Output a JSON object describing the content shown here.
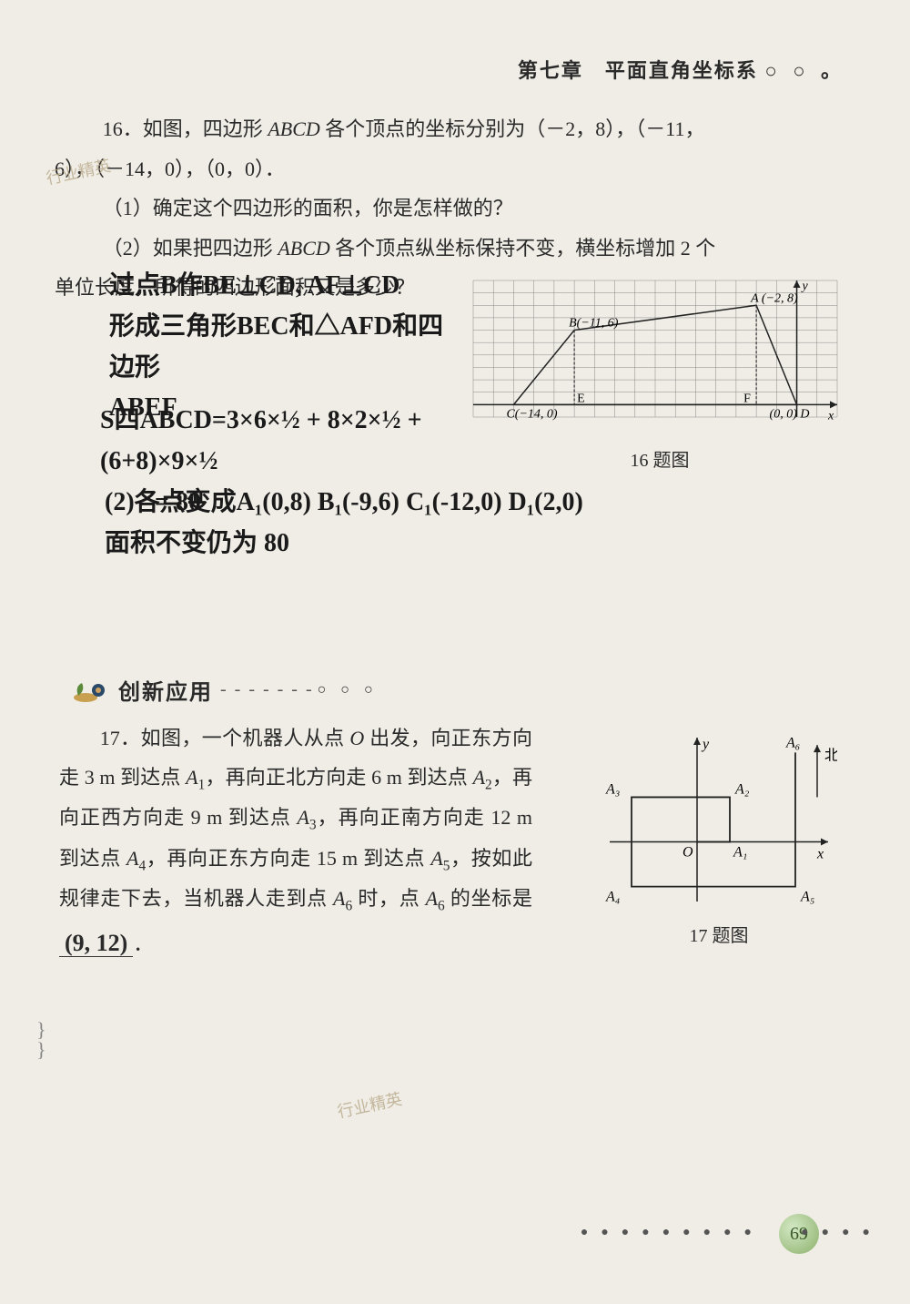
{
  "background_color": "#f0ede6",
  "text_color": "#2a2a2a",
  "handwriting_color": "#1a1a1a",
  "header": {
    "chapter": "第七章　平面直角坐标系",
    "circles": "○ ○ 。"
  },
  "watermark": "行业精英",
  "problem16": {
    "line1_a": "16．如图，四边形 ",
    "line1_abcd": "ABCD",
    "line1_b": " 各个顶点的坐标分别为（－2，8），（－11，",
    "line2": "6），（－14，0），（0，0）．",
    "q1": "（1）确定这个四边形的面积，你是怎样做的？",
    "q2_a": "（2）如果把四边形 ",
    "q2_abcd": "ABCD",
    "q2_b": " 各个顶点纵坐标保持不变，横坐标增加 2 个",
    "q2_c": "单位长度，所得的四边形面积又是多少？"
  },
  "handwritten16": {
    "l1": "过点B作BE⊥CD, AF⊥CD",
    "l2": "形成三角形BEC和△AFD和四边形",
    "l3": "ABEF",
    "calc1": "S四ABCD=3×6×½ + 8×2×½ + (6+8)×9×½",
    "calc2": "= 80",
    "part2_l1": "(2)各点变成A₁(0,8) B₁(-9,6)  C₁(-12,0) D₁(2,0)",
    "part2_l2": "面积不变仍为 80"
  },
  "chart16": {
    "caption": "16 题图",
    "grid_color": "#888888",
    "axis_color": "#222222",
    "shape_color": "#222222",
    "label_fontsize": 14,
    "xlim": [
      -16,
      2
    ],
    "ylim": [
      -1,
      10
    ],
    "x_tick_step": 1,
    "y_tick_step": 1,
    "points": {
      "A": {
        "x": -2,
        "y": 8,
        "label": "A (−2, 8)"
      },
      "B": {
        "x": -11,
        "y": 6,
        "label": "B(−11, 6)"
      },
      "C": {
        "x": -14,
        "y": 0,
        "label": "C(−14, 0)"
      },
      "D": {
        "x": 0,
        "y": 0,
        "label": "(0, 0) D"
      }
    },
    "axis_labels": {
      "x": "x",
      "y": "y"
    },
    "hand_letters": {
      "E": "E",
      "F": "F"
    }
  },
  "section2": {
    "title": "创新应用",
    "dashes": "- - - - - - -",
    "dots": "○ ○ ○"
  },
  "problem17": {
    "text_parts": [
      "　　17．如图，一个机器人从点 ",
      "O",
      " 出发，向正东方向走 3 m 到达点 ",
      "A",
      "1",
      "，再向正北方向走 6 m 到达点 ",
      "A",
      "2",
      "，再向正西方向走 9 m 到达点 ",
      "A",
      "3",
      "，再向正南方向走 12 m 到达点 ",
      "A",
      "4",
      "，再向正东方向走 15 m 到达点 ",
      "A",
      "5",
      "，按如此规律走下去，当机器人走到点 ",
      "A",
      "6",
      " 时，点 ",
      "A",
      "6",
      " 的坐标是"
    ],
    "answer": "(9, 12)",
    "period": "．"
  },
  "chart17": {
    "caption": "17 题图",
    "axis_color": "#222222",
    "path_color": "#222222",
    "label_fontsize": 16,
    "north_label": "北",
    "axis_labels": {
      "x": "x",
      "y": "y",
      "O": "O"
    },
    "points": {
      "A1": {
        "x": 3,
        "y": 0,
        "label": "A₁"
      },
      "A2": {
        "x": 3,
        "y": 6,
        "label": "A₂"
      },
      "A3": {
        "x": -6,
        "y": 6,
        "label": "A₃"
      },
      "A4": {
        "x": -6,
        "y": -6,
        "label": "A₄"
      },
      "A5": {
        "x": 9,
        "y": -6,
        "label": "A₅"
      },
      "A6": {
        "x": 9,
        "y": 12,
        "label": "A₆"
      }
    },
    "xlim": [
      -8,
      12
    ],
    "ylim": [
      -8,
      14
    ]
  },
  "page_number": "69",
  "dots_style": {
    "color": "#555555",
    "filled": "●",
    "open": "◯"
  }
}
